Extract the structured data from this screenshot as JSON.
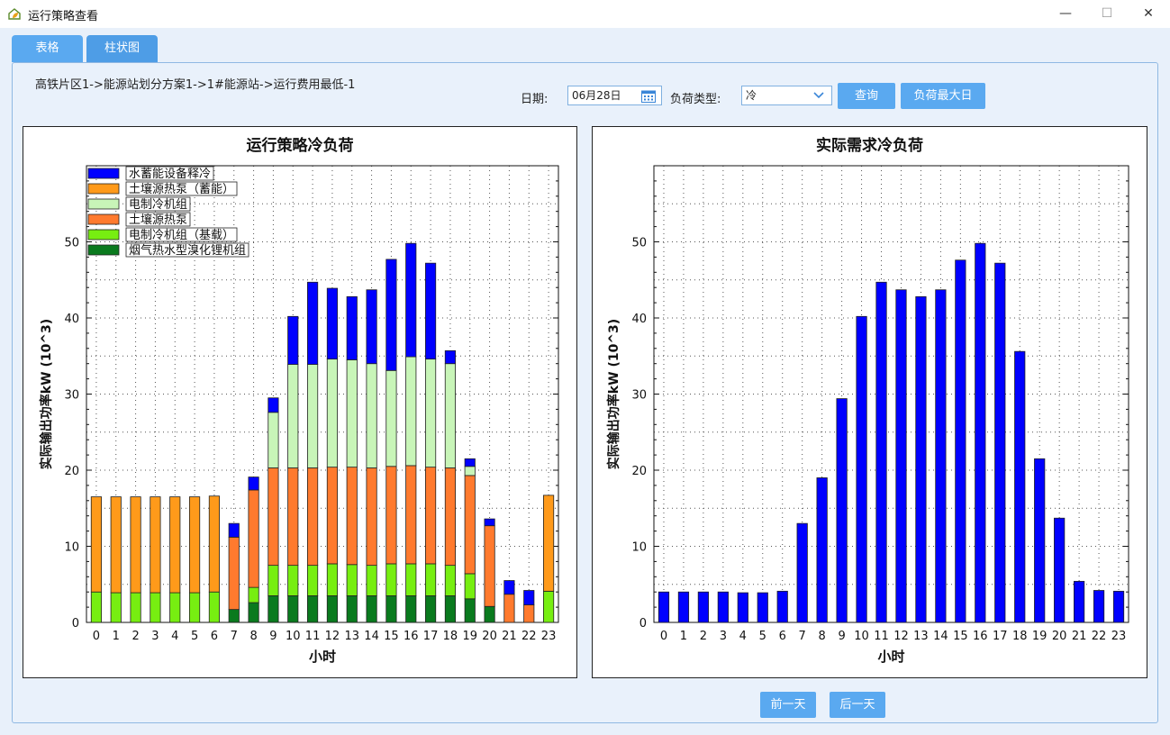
{
  "window": {
    "title": "运行策略查看",
    "minimize_glyph": "—",
    "maximize_glyph": "☐",
    "close_glyph": "✕",
    "icon": "leaf-house-icon"
  },
  "tabs": [
    {
      "label": "表格"
    },
    {
      "label": "柱状图",
      "active": true
    }
  ],
  "breadcrumb": "高铁片区1->能源站划分方案1->1#能源站->运行费用最低-1",
  "filters": {
    "date_label": "日期:",
    "date_value": "06月28日",
    "load_type_label": "负荷类型:",
    "load_type_value": "冷",
    "query_button": "查询",
    "max_day_button": "负荷最大日"
  },
  "nav": {
    "prev_day": "前一天",
    "next_day": "后一天"
  },
  "colors": {
    "accent": "#5aa9f0",
    "storage": "#0000ff",
    "ground_storage": "#ff9a1a",
    "chiller": "#c8f5b8",
    "ground": "#ff7a2e",
    "chiller_base": "#77ee11",
    "lithium": "#0a7a1e"
  },
  "chart_data": [
    {
      "type": "bar",
      "stacked": true,
      "title": "运行策略冷负荷",
      "xlabel": "小时",
      "ylabel": "实际输出功率kW (10^3)",
      "ylim": [
        0,
        60
      ],
      "yticks": [
        0,
        10,
        20,
        30,
        40,
        50
      ],
      "grid": true,
      "legend_position": "top-left",
      "categories": [
        "0",
        "1",
        "2",
        "3",
        "4",
        "5",
        "6",
        "7",
        "8",
        "9",
        "10",
        "11",
        "12",
        "13",
        "14",
        "15",
        "16",
        "17",
        "18",
        "19",
        "20",
        "21",
        "22",
        "23"
      ],
      "series": [
        {
          "name": "烟气热水型溴化锂机组",
          "color": "#0a7a1e",
          "values": [
            0,
            0,
            0,
            0,
            0,
            0,
            0,
            1.7,
            2.6,
            3.5,
            3.5,
            3.5,
            3.5,
            3.5,
            3.5,
            3.5,
            3.5,
            3.5,
            3.5,
            3.1,
            2.1,
            0,
            0,
            0
          ]
        },
        {
          "name": "电制冷机组（基载）",
          "color": "#77ee11",
          "values": [
            4.0,
            3.9,
            3.9,
            3.9,
            3.9,
            3.9,
            4.0,
            0,
            2.0,
            4.0,
            4.0,
            4.0,
            4.2,
            4.1,
            4.0,
            4.2,
            4.2,
            4.2,
            4.0,
            3.3,
            0,
            0,
            0,
            4.1
          ]
        },
        {
          "name": "土壤源热泵",
          "color": "#ff7a2e",
          "values": [
            0,
            0,
            0,
            0,
            0,
            0,
            0,
            9.5,
            12.8,
            12.8,
            12.8,
            12.8,
            12.7,
            12.8,
            12.8,
            12.8,
            12.9,
            12.7,
            12.8,
            12.9,
            10.6,
            3.7,
            2.3,
            0
          ]
        },
        {
          "name": "电制冷机组",
          "color": "#c8f5b8",
          "values": [
            0,
            0,
            0,
            0,
            0,
            0,
            0,
            0,
            0,
            7.3,
            13.6,
            13.6,
            14.2,
            14.1,
            13.7,
            12.6,
            14.3,
            14.2,
            13.7,
            1.2,
            0,
            0,
            0,
            0
          ]
        },
        {
          "name": "土壤源热泵（蓄能）",
          "color": "#ff9a1a",
          "values": [
            12.5,
            12.6,
            12.6,
            12.6,
            12.6,
            12.6,
            12.6,
            0,
            0,
            0,
            0,
            0,
            0,
            0,
            0,
            0,
            0,
            0,
            0,
            0,
            0,
            0,
            0,
            12.6
          ]
        },
        {
          "name": "水蓄能设备释冷",
          "color": "#0000ff",
          "values": [
            0,
            0,
            0,
            0,
            0,
            0,
            0,
            1.8,
            1.7,
            1.9,
            6.3,
            10.8,
            9.3,
            8.3,
            9.7,
            14.6,
            14.9,
            12.6,
            1.7,
            1.0,
            0.9,
            1.8,
            1.9,
            0
          ]
        }
      ]
    },
    {
      "type": "bar",
      "title": "实际需求冷负荷",
      "xlabel": "小时",
      "ylabel": "实际输出功率kW (10^3)",
      "ylim": [
        0,
        60
      ],
      "yticks": [
        0,
        10,
        20,
        30,
        40,
        50
      ],
      "grid": true,
      "categories": [
        "0",
        "1",
        "2",
        "3",
        "4",
        "5",
        "6",
        "7",
        "8",
        "9",
        "10",
        "11",
        "12",
        "13",
        "14",
        "15",
        "16",
        "17",
        "18",
        "19",
        "20",
        "21",
        "22",
        "23"
      ],
      "series": [
        {
          "color": "#0000ff",
          "values": [
            4.0,
            4.0,
            4.0,
            4.0,
            3.9,
            3.9,
            4.1,
            13.0,
            19.0,
            29.4,
            40.2,
            44.7,
            43.7,
            42.8,
            43.7,
            47.6,
            49.8,
            47.2,
            35.6,
            21.5,
            13.7,
            5.4,
            4.2,
            4.1
          ]
        }
      ]
    }
  ]
}
